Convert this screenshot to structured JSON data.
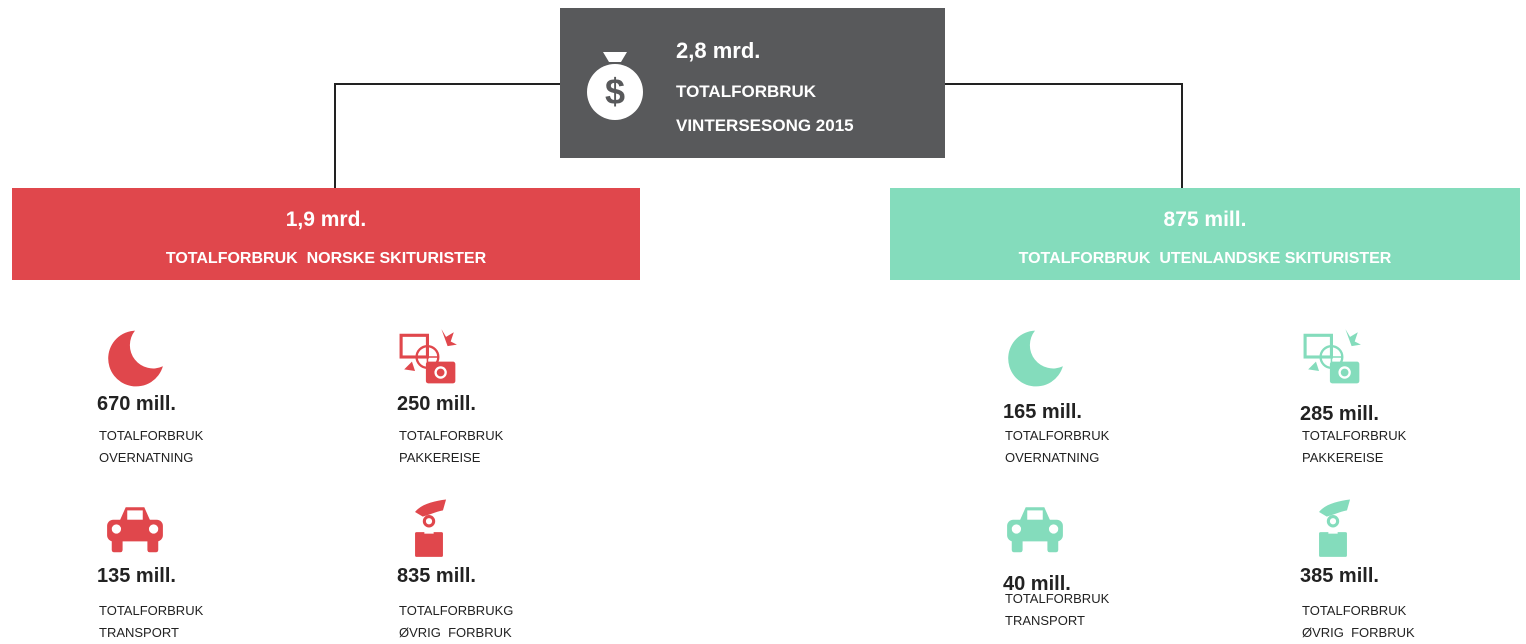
{
  "header": {
    "value": "2,8 mrd.",
    "line1": "TOTALFORBRUK",
    "line2": "VINTERSESONG 2015"
  },
  "groups": [
    {
      "value": "1,9 mrd.",
      "label": "TOTALFORBRUK  NORSKE SKITURISTER",
      "items": [
        {
          "value": "670 mill.",
          "lines": [
            "TOTALFORBRUK",
            "OVERNATNING"
          ]
        },
        {
          "value": "250 mill.",
          "lines": [
            "TOTALFORBRUK",
            "PAKKEREISE"
          ]
        },
        {
          "value": "135 mill.",
          "lines": [
            "TOTALFORBRUK",
            "TRANSPORT"
          ]
        },
        {
          "value": "835 mill.",
          "lines": [
            "TOTALFORBRUKG",
            "ØVRIG  FORBRUK"
          ]
        }
      ]
    },
    {
      "value": "875 mill.",
      "label": "TOTALFORBRUK  UTENLANDSKE SKITURISTER",
      "items": [
        {
          "value": "165 mill.",
          "lines": [
            "TOTALFORBRUK",
            "OVERNATNING"
          ]
        },
        {
          "value": "285 mill.",
          "lines": [
            "TOTALFORBRUK",
            "PAKKEREISE"
          ]
        },
        {
          "value": "40 mill.",
          "lines": [
            "TOTALFORBRUK",
            "TRANSPORT"
          ]
        },
        {
          "value": "385 mill.",
          "lines": [
            "TOTALFORBRUK",
            "ØVRIG  FORBRUK"
          ]
        }
      ]
    }
  ]
}
